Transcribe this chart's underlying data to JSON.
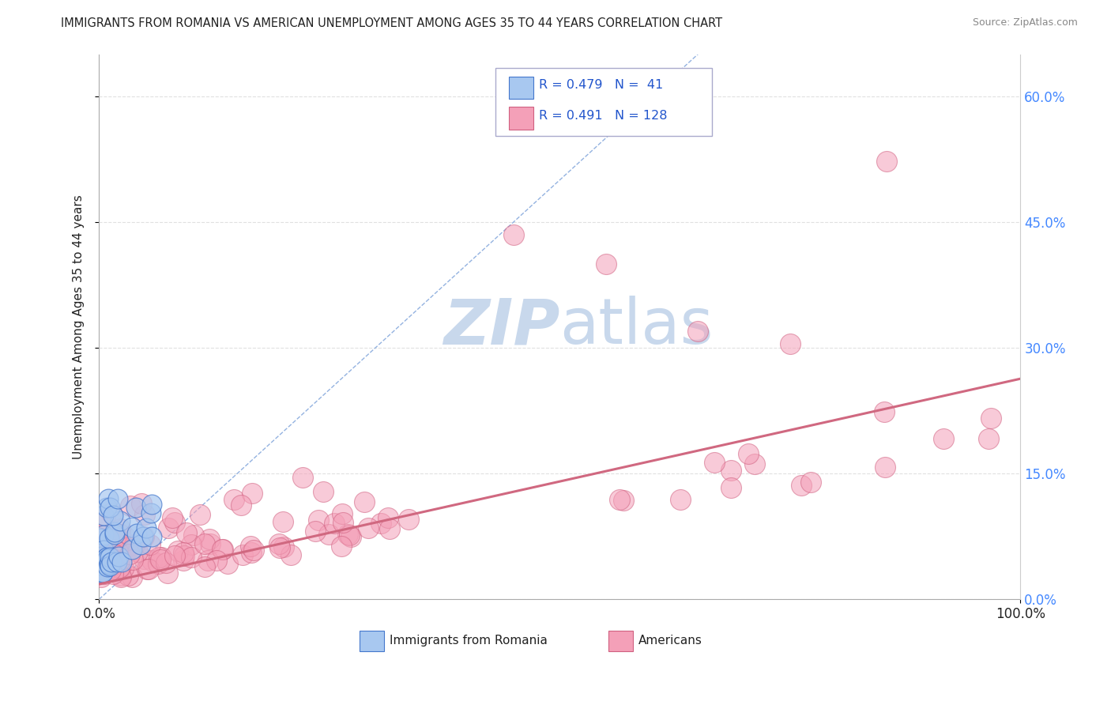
{
  "title": "IMMIGRANTS FROM ROMANIA VS AMERICAN UNEMPLOYMENT AMONG AGES 35 TO 44 YEARS CORRELATION CHART",
  "source": "Source: ZipAtlas.com",
  "ylabel": "Unemployment Among Ages 35 to 44 years",
  "ytick_labels": [
    "0.0%",
    "15.0%",
    "30.0%",
    "45.0%",
    "60.0%"
  ],
  "ytick_values": [
    0.0,
    0.15,
    0.3,
    0.45,
    0.6
  ],
  "xlim": [
    0.0,
    1.0
  ],
  "ylim": [
    0.0,
    0.65
  ],
  "romania_R": 0.479,
  "romania_N": 41,
  "americans_R": 0.491,
  "americans_N": 128,
  "romania_color": "#a8c8f0",
  "romania_edge_color": "#4477cc",
  "americans_color": "#f4a0b8",
  "americans_edge_color": "#d06080",
  "regression_line_color": "#d06880",
  "diagonal_line_color": "#88aadd",
  "background_color": "#ffffff",
  "watermark_color": "#c8d8ec",
  "grid_color": "#cccccc",
  "legend_text_color": "#2255cc",
  "title_color": "#222222",
  "source_color": "#888888",
  "ylabel_color": "#222222",
  "tick_label_color": "#222222",
  "right_tick_color": "#4488ff"
}
